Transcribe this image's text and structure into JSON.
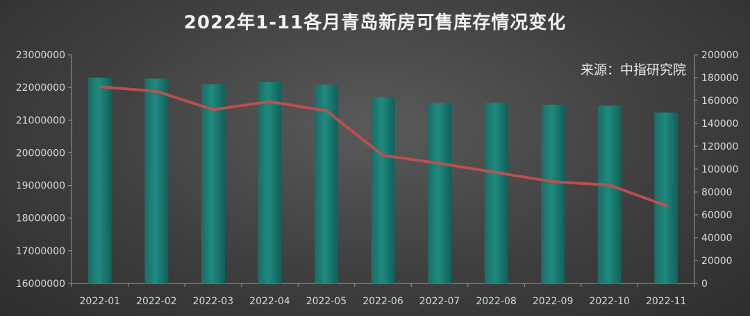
{
  "chart_data": {
    "type": "bar",
    "title": "2022年1-11各月青岛新房可售库存情况变化",
    "annotation": "来源：中指研究院",
    "categories": [
      "2022-01",
      "2022-02",
      "2022-03",
      "2022-04",
      "2022-05",
      "2022-06",
      "2022-07",
      "2022-08",
      "2022-09",
      "2022-10",
      "2022-11"
    ],
    "series": [
      {
        "type": "bar",
        "axis": "left",
        "color": "#1f8a80",
        "values": [
          22300000,
          22270000,
          22100000,
          22170000,
          22080000,
          21700000,
          21520000,
          21530000,
          21470000,
          21440000,
          21230000
        ]
      },
      {
        "type": "line",
        "axis": "right",
        "color": "#c0504d",
        "values": [
          172000,
          168000,
          152000,
          159000,
          151000,
          112000,
          105000,
          97000,
          89000,
          86000,
          68000
        ]
      }
    ],
    "ylim_left": [
      16000000,
      23000000
    ],
    "yticks_left": [
      "23000000",
      "22000000",
      "21000000",
      "20000000",
      "19000000",
      "18000000",
      "17000000",
      "16000000"
    ],
    "ylim_right": [
      0,
      200000
    ],
    "yticks_right": [
      "200000",
      "180000",
      "160000",
      "140000",
      "120000",
      "100000",
      "80000",
      "60000",
      "40000",
      "20000",
      "0"
    ],
    "grid": false,
    "legend": "none"
  }
}
